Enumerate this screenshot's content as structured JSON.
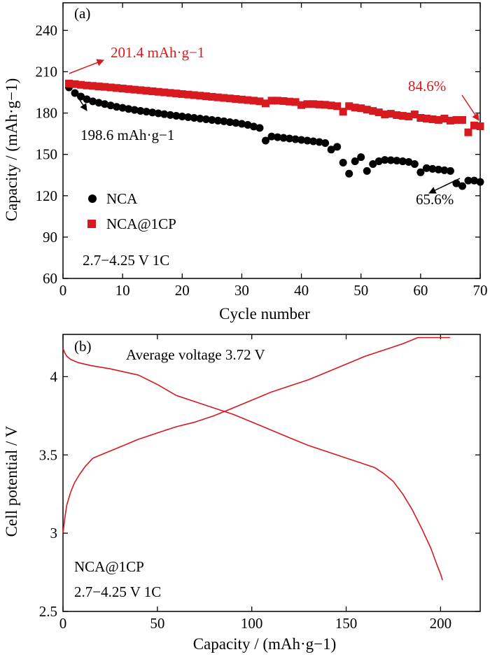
{
  "colors": {
    "nca": "#000000",
    "ncacp": "#d71920",
    "axis": "#000000"
  },
  "chart_data": [
    {
      "type": "scatter",
      "panel_label": "(a)",
      "xlabel": "Cycle number",
      "ylabel": "Capacity / (mAh·g−1)",
      "xlim": [
        0,
        70
      ],
      "ylim": [
        60,
        260
      ],
      "xticks": [
        0,
        10,
        20,
        30,
        40,
        50,
        60,
        70
      ],
      "yticks": [
        60,
        90,
        120,
        150,
        180,
        210,
        240
      ],
      "legend_position": "bottom-left",
      "condition_label": "2.7−4.25 V 1C",
      "annotations": [
        {
          "text": "201.4 mAh·g−1",
          "color": "#d71920"
        },
        {
          "text": "198.6 mAh·g−1",
          "color": "#000000"
        },
        {
          "text": "84.6%",
          "color": "#d71920"
        },
        {
          "text": "65.6%",
          "color": "#000000"
        }
      ],
      "series": [
        {
          "name": "NCA",
          "marker": "circle",
          "color": "#000000",
          "x": [
            1,
            2,
            3,
            4,
            5,
            6,
            7,
            8,
            9,
            10,
            11,
            12,
            13,
            14,
            15,
            16,
            17,
            18,
            19,
            20,
            21,
            22,
            23,
            24,
            25,
            26,
            27,
            28,
            29,
            30,
            31,
            32,
            33,
            34,
            35,
            36,
            37,
            38,
            39,
            40,
            41,
            42,
            43,
            44,
            45,
            46,
            47,
            48,
            49,
            50,
            51,
            52,
            53,
            54,
            55,
            56,
            57,
            58,
            59,
            60,
            61,
            62,
            63,
            64,
            65,
            66,
            67,
            68,
            69,
            70
          ],
          "y": [
            198.6,
            194.5,
            192,
            190,
            188.5,
            187.5,
            186.5,
            185.5,
            184.5,
            183.8,
            183,
            182.3,
            181.6,
            181,
            180.4,
            179.8,
            179.2,
            178.6,
            178,
            177.5,
            177,
            176.5,
            176,
            175.5,
            175,
            174.5,
            174,
            173.4,
            172.8,
            172.2,
            171.4,
            170.2,
            169.2,
            160,
            163,
            162.5,
            162,
            161.5,
            161,
            160.5,
            160,
            159.5,
            159,
            158.2,
            153.5,
            155.5,
            144,
            136,
            145,
            148,
            138,
            143,
            145,
            146,
            145.8,
            145.5,
            145,
            144.5,
            143,
            137,
            140,
            139.5,
            139,
            138.5,
            138,
            129,
            127,
            131,
            131,
            130
          ]
        },
        {
          "name": "NCA@1CP",
          "marker": "square",
          "color": "#d71920",
          "x": [
            1,
            2,
            3,
            4,
            5,
            6,
            7,
            8,
            9,
            10,
            11,
            12,
            13,
            14,
            15,
            16,
            17,
            18,
            19,
            20,
            21,
            22,
            23,
            24,
            25,
            26,
            27,
            28,
            29,
            30,
            31,
            32,
            33,
            34,
            35,
            36,
            37,
            38,
            39,
            40,
            41,
            42,
            43,
            44,
            45,
            46,
            47,
            48,
            49,
            50,
            51,
            52,
            53,
            54,
            55,
            56,
            57,
            58,
            59,
            60,
            61,
            62,
            63,
            64,
            65,
            66,
            67,
            68,
            69,
            70
          ],
          "y": [
            201.4,
            201,
            200.5,
            200,
            199.7,
            199.3,
            199,
            198.6,
            198.2,
            197.8,
            197.4,
            197,
            196.6,
            196.2,
            195.8,
            195.4,
            195,
            194.6,
            194.2,
            193.8,
            193.4,
            193,
            192.6,
            192.2,
            191.8,
            191.4,
            191,
            190.6,
            190.2,
            189.8,
            189.4,
            189,
            188.5,
            187,
            189,
            189,
            188.7,
            188.3,
            188,
            185.8,
            186.5,
            186.5,
            186.2,
            186,
            185.5,
            185,
            181,
            185,
            184,
            183.5,
            182.5,
            181.5,
            180.5,
            179,
            179.5,
            178.5,
            178,
            177.5,
            179,
            176.5,
            176,
            175.5,
            175,
            176,
            174.5,
            175,
            175,
            166,
            171,
            170.4
          ]
        }
      ]
    },
    {
      "type": "line",
      "panel_label": "(b)",
      "xlabel": "Capacity / (mAh·g−1)",
      "ylabel": "Cell potential / V",
      "xlim": [
        0,
        221
      ],
      "ylim": [
        2.5,
        4.27
      ],
      "xticks": [
        0,
        50,
        100,
        150,
        200
      ],
      "yticks": [
        2.5,
        3.0,
        3.5,
        4.0
      ],
      "title_annotation": "Average voltage 3.72 V",
      "condition_label": "2.7−4.25 V 1C",
      "series_label": "NCA@1CP",
      "series": [
        {
          "name": "charge",
          "color": "#d71920",
          "x": [
            0,
            1,
            2,
            4,
            6,
            9,
            12,
            16,
            20,
            30,
            40,
            50,
            60,
            70,
            80,
            90,
            100,
            110,
            120,
            130,
            140,
            150,
            160,
            170,
            180,
            188,
            195,
            205
          ],
          "y": [
            3.0,
            3.1,
            3.18,
            3.26,
            3.32,
            3.38,
            3.43,
            3.48,
            3.5,
            3.55,
            3.6,
            3.64,
            3.68,
            3.71,
            3.75,
            3.8,
            3.85,
            3.9,
            3.94,
            3.98,
            4.03,
            4.08,
            4.13,
            4.17,
            4.21,
            4.25,
            4.25,
            4.25
          ]
        },
        {
          "name": "discharge",
          "color": "#d71920",
          "x": [
            0,
            1,
            2,
            4,
            8,
            15,
            25,
            40,
            50,
            60,
            70,
            80,
            90,
            100,
            110,
            120,
            130,
            140,
            150,
            160,
            165,
            170,
            175,
            180,
            185,
            190,
            195,
            198,
            200,
            201
          ],
          "y": [
            4.18,
            4.15,
            4.13,
            4.11,
            4.09,
            4.07,
            4.05,
            4.01,
            3.95,
            3.88,
            3.84,
            3.8,
            3.76,
            3.71,
            3.66,
            3.61,
            3.56,
            3.52,
            3.48,
            3.44,
            3.42,
            3.38,
            3.33,
            3.25,
            3.15,
            3.03,
            2.9,
            2.8,
            2.74,
            2.7
          ]
        }
      ]
    }
  ]
}
